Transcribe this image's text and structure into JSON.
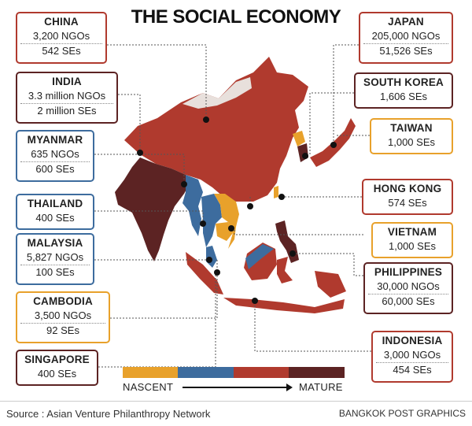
{
  "title": "THE SOCIAL ECONOMY",
  "legend": {
    "low_label": "NASCENT",
    "high_label": "MATURE",
    "colors": [
      "#E8A12B",
      "#3D6C9E",
      "#B03A2E",
      "#5C2323"
    ]
  },
  "countries": {
    "china": {
      "name": "CHINA",
      "lines": [
        "3,200 NGOs",
        "542 SEs"
      ],
      "stage": "growing",
      "color": "#B03A2E"
    },
    "india": {
      "name": "INDIA",
      "lines": [
        "3.3 million NGOs",
        "2 million SEs"
      ],
      "stage": "mature",
      "color": "#5C2323"
    },
    "myanmar": {
      "name": "MYANMAR",
      "lines": [
        "635 NGOs",
        "600 SEs"
      ],
      "stage": "early",
      "color": "#3D6C9E"
    },
    "thailand": {
      "name": "THAILAND",
      "lines": [
        "400 SEs"
      ],
      "stage": "early",
      "color": "#3D6C9E"
    },
    "malaysia": {
      "name": "MALAYSIA",
      "lines": [
        "5,827 NGOs",
        "100 SEs"
      ],
      "stage": "early",
      "color": "#3D6C9E"
    },
    "cambodia": {
      "name": "CAMBODIA",
      "lines": [
        "3,500 NGOs",
        "92 SEs"
      ],
      "stage": "nascent",
      "color": "#E8A12B"
    },
    "singapore": {
      "name": "SINGAPORE",
      "lines": [
        "400 SEs"
      ],
      "stage": "mature",
      "color": "#5C2323"
    },
    "japan": {
      "name": "JAPAN",
      "lines": [
        "205,000 NGOs",
        "51,526 SEs"
      ],
      "stage": "growing",
      "color": "#B03A2E"
    },
    "south_korea": {
      "name": "SOUTH KOREA",
      "lines": [
        "1,606 SEs"
      ],
      "stage": "mature",
      "color": "#5C2323"
    },
    "taiwan": {
      "name": "TAIWAN",
      "lines": [
        "1,000 SEs"
      ],
      "stage": "nascent",
      "color": "#E8A12B"
    },
    "hong_kong": {
      "name": "HONG KONG",
      "lines": [
        "574 SEs"
      ],
      "stage": "growing",
      "color": "#B03A2E"
    },
    "vietnam": {
      "name": "VIETNAM",
      "lines": [
        "1,000 SEs"
      ],
      "stage": "nascent",
      "color": "#E8A12B"
    },
    "philippines": {
      "name": "PHILIPPINES",
      "lines": [
        "30,000 NGOs",
        "60,000 SEs"
      ],
      "stage": "mature",
      "color": "#5C2323"
    },
    "indonesia": {
      "name": "INDONESIA",
      "lines": [
        "3,000 NGOs",
        "454 SEs"
      ],
      "stage": "growing",
      "color": "#B03A2E"
    }
  },
  "source": "Source : Asian Venture Philanthropy Network",
  "credit": "BANGKOK POST GRAPHICS"
}
